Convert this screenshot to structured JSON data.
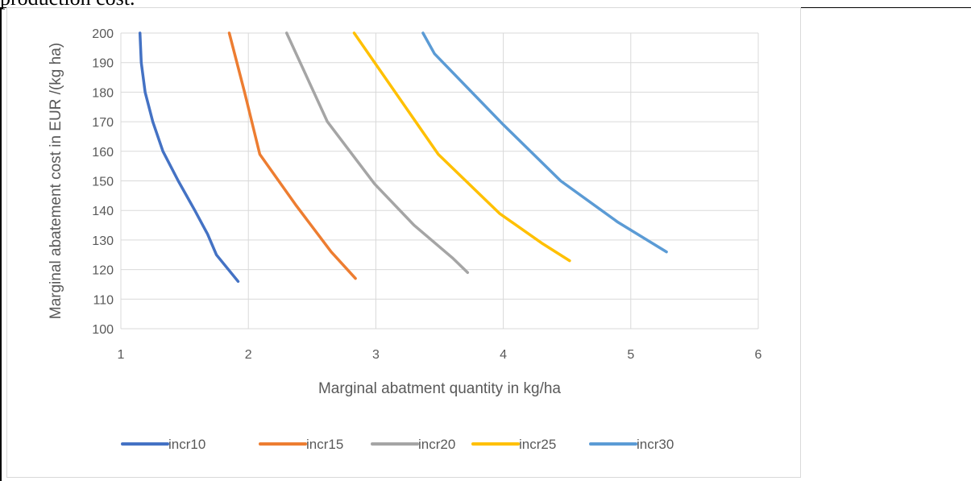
{
  "document": {
    "top_text": "production cost."
  },
  "chart_data": {
    "type": "line",
    "title": "",
    "xlabel": "Marginal abatment quantity in kg/ha",
    "ylabel": "Marginal abatement cost in EUR /(kg ha)",
    "xlim": [
      1,
      6
    ],
    "ylim": [
      100,
      200
    ],
    "xticks": [
      1,
      2,
      3,
      4,
      5,
      6
    ],
    "yticks": [
      100,
      110,
      120,
      130,
      140,
      150,
      160,
      170,
      180,
      190,
      200
    ],
    "grid": true,
    "legend_position": "bottom",
    "series": [
      {
        "name": "incr10",
        "color": "#4472c4",
        "points": [
          [
            1.15,
            200
          ],
          [
            1.16,
            190
          ],
          [
            1.19,
            180
          ],
          [
            1.25,
            170
          ],
          [
            1.33,
            160
          ],
          [
            1.45,
            150
          ],
          [
            1.58,
            140
          ],
          [
            1.68,
            132
          ],
          [
            1.75,
            125
          ],
          [
            1.92,
            116
          ]
        ]
      },
      {
        "name": "incr15",
        "color": "#ed7d31",
        "points": [
          [
            1.85,
            200
          ],
          [
            1.97,
            180
          ],
          [
            2.09,
            159
          ],
          [
            2.37,
            142
          ],
          [
            2.65,
            126
          ],
          [
            2.84,
            117
          ]
        ]
      },
      {
        "name": "incr20",
        "color": "#a5a5a5",
        "points": [
          [
            2.3,
            200
          ],
          [
            2.62,
            170
          ],
          [
            2.99,
            149
          ],
          [
            3.3,
            135
          ],
          [
            3.6,
            124
          ],
          [
            3.72,
            119
          ]
        ]
      },
      {
        "name": "incr25",
        "color": "#ffc000",
        "points": [
          [
            2.83,
            200
          ],
          [
            3.49,
            159
          ],
          [
            3.97,
            139
          ],
          [
            4.3,
            129
          ],
          [
            4.52,
            123
          ]
        ]
      },
      {
        "name": "incr30",
        "color": "#5b9bd5",
        "points": [
          [
            3.37,
            200
          ],
          [
            3.46,
            193
          ],
          [
            4.0,
            169
          ],
          [
            4.45,
            150
          ],
          [
            4.9,
            136
          ],
          [
            5.28,
            126
          ]
        ]
      }
    ]
  }
}
